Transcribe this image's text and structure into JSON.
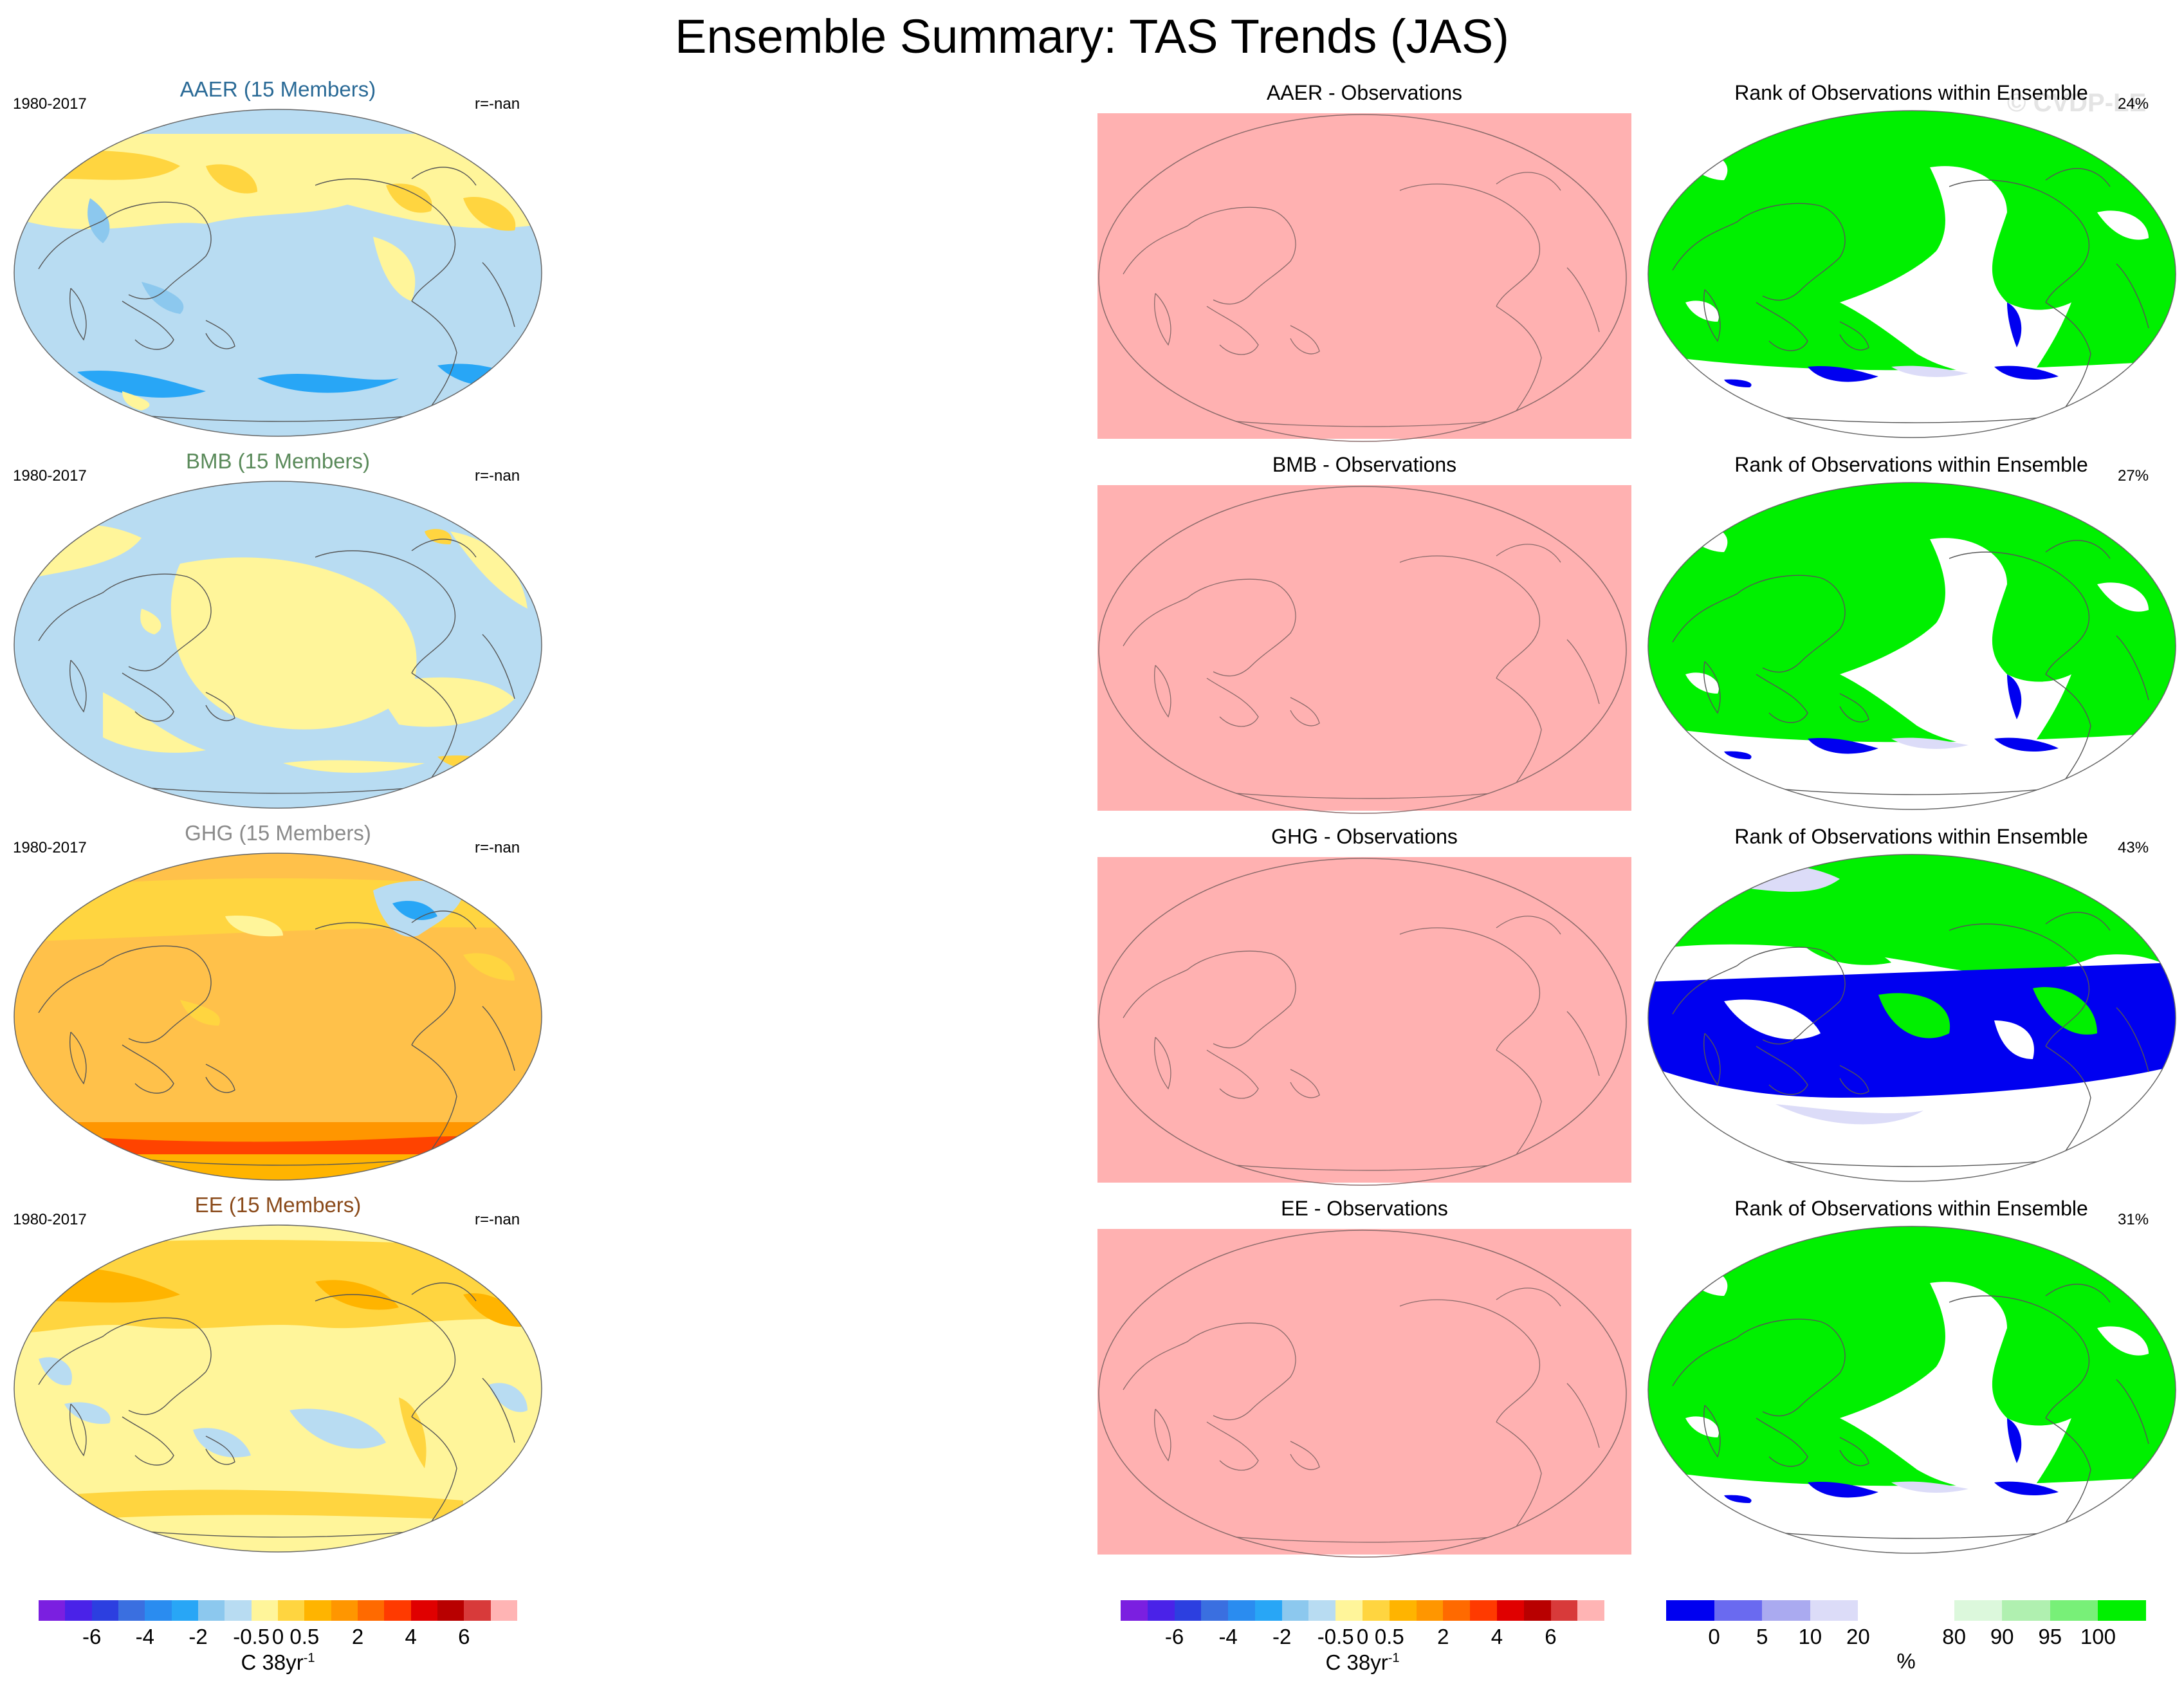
{
  "title": "Ensemble Summary: TAS Trends (JAS)",
  "watermark": "© CVDP-LE",
  "rows": [
    {
      "ens_title": "AAER (15 Members)",
      "ens_color": "#2a6a96",
      "period": "1980-2017",
      "r": "r=-nan",
      "obs_title": "AAER - Observations",
      "rank_title": "Rank of Observations within Ensemble",
      "pct": "24%",
      "style": "aaer"
    },
    {
      "ens_title": "BMB (15 Members)",
      "ens_color": "#5a8a5a",
      "period": "1980-2017",
      "r": "r=-nan",
      "obs_title": "BMB - Observations",
      "rank_title": "Rank of Observations within Ensemble",
      "pct": "27%",
      "style": "bmb"
    },
    {
      "ens_title": "GHG (15 Members)",
      "ens_color": "#8a8a8a",
      "period": "1980-2017",
      "r": "r=-nan",
      "obs_title": "GHG - Observations",
      "rank_title": "Rank of Observations within Ensemble",
      "pct": "43%",
      "style": "ghg"
    },
    {
      "ens_title": "EE (15 Members)",
      "ens_color": "#8a4a1a",
      "period": "1980-2017",
      "r": "r=-nan",
      "obs_title": "EE - Observations",
      "rank_title": "Rank of Observations within Ensemble",
      "pct": "31%",
      "style": "ee"
    }
  ],
  "trend_colorbar": {
    "colors": [
      "#7b1fe0",
      "#4a22e8",
      "#2c3fe0",
      "#3a6fe0",
      "#2a8cf0",
      "#28a6f6",
      "#8cc8ee",
      "#b8dcf2",
      "#fff59a",
      "#ffd540",
      "#ffb400",
      "#ff9600",
      "#ff6a00",
      "#ff3a00",
      "#e00000",
      "#b80000",
      "#d83a3a",
      "#ffb4b4"
    ],
    "tick_labels": [
      "-6",
      "-4",
      "-2",
      "-0.5",
      "0",
      "0.5",
      "2",
      "4",
      "6"
    ],
    "unit": "C 38yr",
    "unit_sup": "-1"
  },
  "rank_colorbar": {
    "colors": [
      "#0000f0",
      "#6a6af0",
      "#aaaaf0",
      "#dcdcf8",
      "#ffffff",
      "#ffffff",
      "#dcf8dc",
      "#b0f0b0",
      "#78f078",
      "#00f000"
    ],
    "tick_labels": [
      "0",
      "5",
      "10",
      "20",
      "80",
      "90",
      "95",
      "100"
    ],
    "unit": "%"
  }
}
